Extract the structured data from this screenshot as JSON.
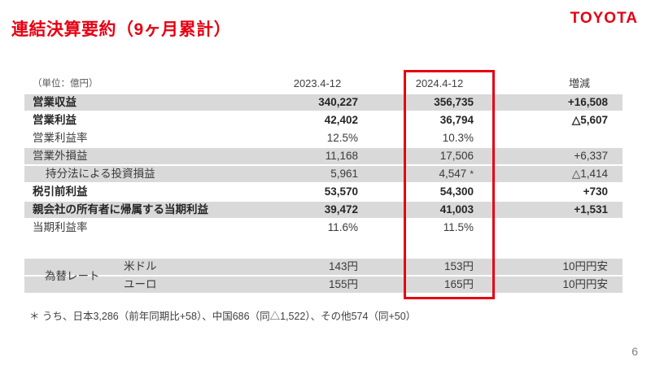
{
  "header": {
    "title": "連結決算要約（9ヶ月累計）",
    "logo": "TOYOTA"
  },
  "table": {
    "unit_label": "（単位：億円）",
    "col_2023": "2023.4-12",
    "col_2024": "2024.4-12",
    "col_change": "増減",
    "rows": [
      {
        "label": "営業収益",
        "y2023": "340,227",
        "y2024": "356,735",
        "change": "+16,508"
      },
      {
        "label": "営業利益",
        "y2023": "42,402",
        "y2024": "36,794",
        "change": "△5,607"
      },
      {
        "label": "営業利益率",
        "y2023": "12.5%",
        "y2024": "10.3%",
        "change": ""
      },
      {
        "label": "営業外損益",
        "y2023": "11,168",
        "y2024": "17,506",
        "change": "+6,337"
      },
      {
        "label": "持分法による投資損益",
        "y2023": "5,961",
        "y2024": "4,547",
        "y2024_note": "*",
        "change": "△1,414"
      },
      {
        "label": "税引前利益",
        "y2023": "53,570",
        "y2024": "54,300",
        "change": "+730"
      },
      {
        "label": "親会社の所有者に帰属する当期利益",
        "y2023": "39,472",
        "y2024": "41,003",
        "change": "+1,531"
      },
      {
        "label": "当期利益率",
        "y2023": "11.6%",
        "y2024": "11.5%",
        "change": ""
      }
    ],
    "fx": {
      "group_label": "為替レート",
      "rows": [
        {
          "currency": "米ドル",
          "y2023": "143円",
          "y2024": "153円",
          "change": "10円円安"
        },
        {
          "currency": "ユーロ",
          "y2023": "155円",
          "y2024": "165円",
          "change": "10円円安"
        }
      ]
    }
  },
  "footnote": "＊ うち、日本3,286（前年同期比+58）、中国686（同△1,522）、その他574（同+50）",
  "page_number": "6",
  "colors": {
    "accent_red": "#e60012",
    "row_gray": "#d9d9d9"
  }
}
